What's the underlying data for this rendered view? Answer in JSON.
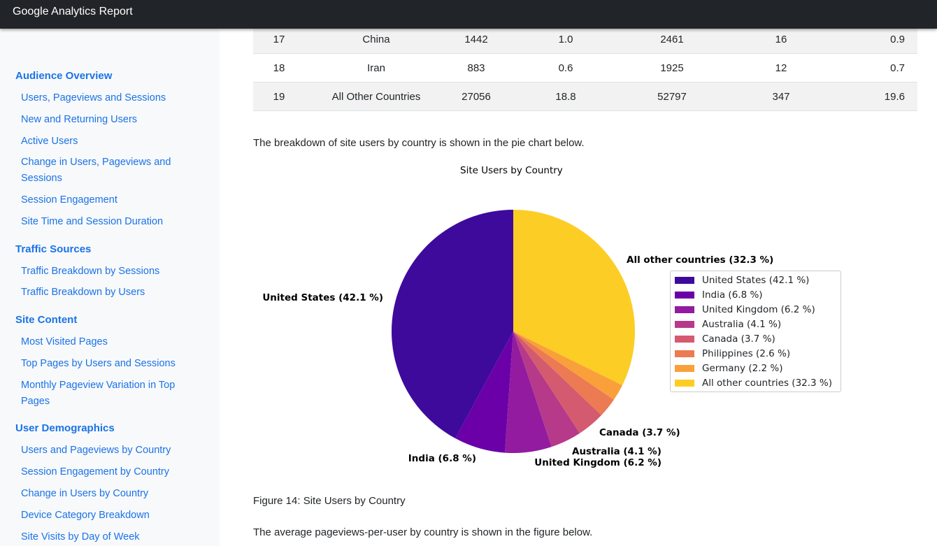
{
  "app": {
    "title": "Google Analytics Report"
  },
  "sidebar": {
    "sections": [
      {
        "title": "Audience Overview",
        "items": [
          "Users, Pageviews and Sessions",
          "New and Returning Users",
          "Active Users",
          "Change in Users, Pageviews and Sessions",
          "Session Engagement",
          "Site Time and Session Duration"
        ]
      },
      {
        "title": "Traffic Sources",
        "items": [
          "Traffic Breakdown by Sessions",
          "Traffic Breakdown by Users"
        ]
      },
      {
        "title": "Site Content",
        "items": [
          "Most Visited Pages",
          "Top Pages by Users and Sessions",
          "Monthly Pageview Variation in Top Pages"
        ]
      },
      {
        "title": "User Demographics",
        "items": [
          "Users and Pageviews by Country",
          "Session Engagement by Country",
          "Change in Users by Country",
          "Device Category Breakdown",
          "Site Visits by Day of Week"
        ]
      }
    ]
  },
  "table": {
    "rows": [
      [
        "17",
        "China",
        "1442",
        "1.0",
        "2461",
        "16",
        "0.9"
      ],
      [
        "18",
        "Iran",
        "883",
        "0.6",
        "1925",
        "12",
        "0.7"
      ],
      [
        "19",
        "All Other Countries",
        "27056",
        "18.8",
        "52797",
        "347",
        "19.6"
      ]
    ]
  },
  "content": {
    "intro": "The breakdown of site users by country is shown in the pie chart below.",
    "figure_caption": "Figure 14: Site Users by Country",
    "next_para": "The average pageviews-per-user by country is shown in the figure below."
  },
  "chart_data": {
    "type": "pie",
    "title": "Site Users by Country",
    "labels": [
      "United States (42.1 %)",
      "India (6.8 %)",
      "United Kingdom (6.2 %)",
      "Australia (4.1 %)",
      "Canada (3.7 %)",
      "Philippines (2.6 %)",
      "Germany (2.2 %)",
      "All other countries (32.3 %)"
    ],
    "values": [
      42.1,
      6.8,
      6.2,
      4.1,
      3.7,
      2.6,
      2.2,
      32.3
    ],
    "colors": [
      "#3e0a9c",
      "#6b00a8",
      "#921ba0",
      "#b6398a",
      "#d45a6f",
      "#ec7a53",
      "#f9a03a",
      "#fccd25"
    ],
    "slice_labels": [
      "United States (42.1 %)",
      "India (6.8 %)",
      "United Kingdom (6.2 %)",
      "Australia (4.1 %)",
      "Canada (3.7 %)",
      "",
      "",
      "All other countries (32.3 %)"
    ],
    "legend_position": "right"
  }
}
